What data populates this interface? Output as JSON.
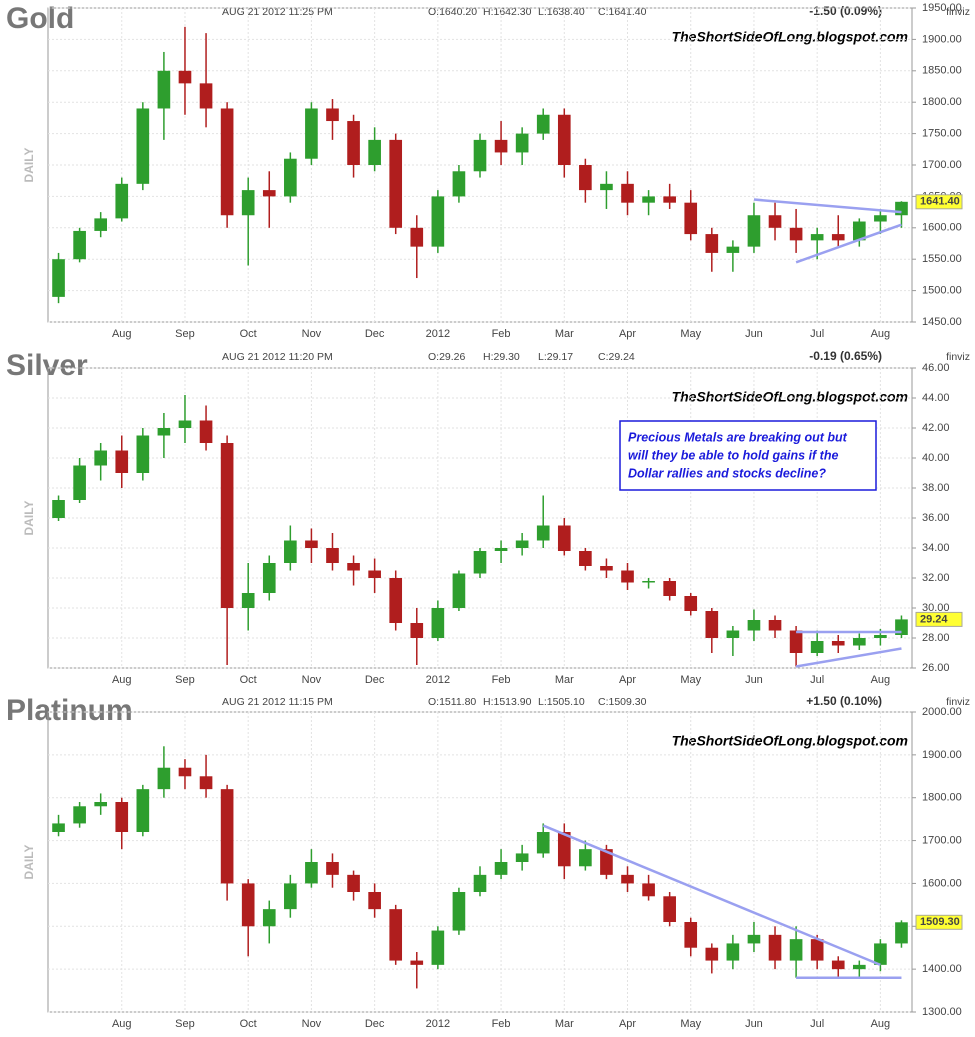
{
  "chart_data": [
    {
      "type": "candlestick",
      "title": "Gold",
      "date": "AUG 21 2012 11:25 PM",
      "open_label": "O:1640.20",
      "high_label": "H:1642.30",
      "low_label": "L:1638.40",
      "close_label": "C:1641.40",
      "change": "-1.50 (0.09%)",
      "change_color": "#cc0000",
      "source": "finviz",
      "watermark": "TheShortSideOfLong.blogspot.com",
      "y_label": "DAILY",
      "categories": [
        null,
        null,
        null,
        "Aug",
        null,
        null,
        "Sep",
        null,
        null,
        "Oct",
        null,
        null,
        "Nov",
        null,
        null,
        "Dec",
        null,
        null,
        "2012",
        null,
        null,
        "Feb",
        null,
        null,
        "Mar",
        null,
        null,
        "Apr",
        null,
        null,
        "May",
        null,
        null,
        "Jun",
        null,
        null,
        "Jul",
        null,
        null,
        "Aug",
        null
      ],
      "open": [
        1490,
        1550,
        1595,
        1615,
        1670,
        1790,
        1850,
        1830,
        1790,
        1620,
        1660,
        1650,
        1710,
        1790,
        1770,
        1700,
        1740,
        1600,
        1570,
        1650,
        1690,
        1740,
        1720,
        1750,
        1780,
        1700,
        1660,
        1670,
        1640,
        1650,
        1640,
        1590,
        1560,
        1570,
        1620,
        1600,
        1580,
        1590,
        1580,
        1610,
        1620
      ],
      "high": [
        1560,
        1600,
        1625,
        1680,
        1800,
        1880,
        1920,
        1910,
        1800,
        1680,
        1690,
        1720,
        1800,
        1805,
        1780,
        1760,
        1750,
        1620,
        1660,
        1700,
        1750,
        1770,
        1760,
        1790,
        1790,
        1710,
        1690,
        1690,
        1660,
        1670,
        1660,
        1600,
        1580,
        1640,
        1640,
        1630,
        1600,
        1620,
        1615,
        1630,
        1642.3
      ],
      "low": [
        1480,
        1545,
        1585,
        1610,
        1660,
        1740,
        1780,
        1760,
        1600,
        1540,
        1600,
        1640,
        1700,
        1740,
        1680,
        1690,
        1590,
        1520,
        1560,
        1640,
        1680,
        1700,
        1700,
        1740,
        1680,
        1640,
        1630,
        1620,
        1620,
        1630,
        1580,
        1530,
        1530,
        1560,
        1580,
        1560,
        1550,
        1570,
        1570,
        1590,
        1600
      ],
      "close": [
        1550,
        1595,
        1615,
        1670,
        1790,
        1850,
        1830,
        1790,
        1620,
        1660,
        1650,
        1710,
        1790,
        1770,
        1700,
        1740,
        1600,
        1570,
        1650,
        1690,
        1740,
        1720,
        1750,
        1780,
        1700,
        1660,
        1670,
        1640,
        1650,
        1640,
        1590,
        1560,
        1570,
        1620,
        1600,
        1580,
        1590,
        1580,
        1610,
        1620,
        1641.4
      ],
      "up_color": "#2e9e2e",
      "down_color": "#b01e1e",
      "ylim": [
        1450,
        1950
      ],
      "yticks": [
        {
          "value": 1450,
          "label": "1450.00"
        },
        {
          "value": 1500,
          "label": "1500.00"
        },
        {
          "value": 1550,
          "label": "1550.00"
        },
        {
          "value": 1600,
          "label": "1600.00"
        },
        {
          "value": 1650,
          "label": "1650.00"
        },
        {
          "value": 1700,
          "label": "1700.00"
        },
        {
          "value": 1750,
          "label": "1750.00"
        },
        {
          "value": 1800,
          "label": "1800.00"
        },
        {
          "value": 1850,
          "label": "1850.00"
        },
        {
          "value": 1900,
          "label": "1900.00"
        },
        {
          "value": 1950,
          "label": "1950.00"
        }
      ],
      "last_price": {
        "value": 1641.4,
        "label": "1641.40"
      },
      "trendlines": [
        {
          "x": [
            33,
            40
          ],
          "y": [
            1645,
            1625
          ]
        },
        {
          "x": [
            35,
            40
          ],
          "y": [
            1545,
            1605
          ]
        }
      ],
      "trendline_color": "#9aa0f0",
      "grid": true
    },
    {
      "type": "candlestick",
      "title": "Silver",
      "date": "AUG 21 2012 11:20 PM",
      "open_label": "O:29.26",
      "high_label": "H:29.30",
      "low_label": "L:29.17",
      "close_label": "C:29.24",
      "change": "-0.19 (0.65%)",
      "change_color": "#cc0000",
      "source": "finviz",
      "watermark": "TheShortSideOfLong.blogspot.com",
      "y_label": "DAILY",
      "annotation": [
        "Precious Metals are breaking out but",
        "will they be able to hold gains if the",
        "Dollar rallies and stocks decline?"
      ],
      "categories": [
        null,
        null,
        null,
        "Aug",
        null,
        null,
        "Sep",
        null,
        null,
        "Oct",
        null,
        null,
        "Nov",
        null,
        null,
        "Dec",
        null,
        null,
        "2012",
        null,
        null,
        "Feb",
        null,
        null,
        "Mar",
        null,
        null,
        "Apr",
        null,
        null,
        "May",
        null,
        null,
        "Jun",
        null,
        null,
        "Jul",
        null,
        null,
        "Aug",
        null
      ],
      "open": [
        36,
        37.2,
        39.5,
        40.5,
        39,
        41.5,
        42,
        42.5,
        41,
        30,
        31,
        33,
        34.5,
        34,
        33,
        32.5,
        32,
        29,
        28,
        30,
        32.3,
        33.8,
        34,
        34.5,
        35.5,
        33.8,
        32.8,
        32.5,
        31.7,
        31.8,
        30.8,
        29.8,
        28,
        28.5,
        29.2,
        28.5,
        27,
        27.8,
        27.5,
        28,
        28.2
      ],
      "high": [
        37.5,
        40,
        41,
        41.5,
        42,
        43,
        44.2,
        43.5,
        41.5,
        33,
        33.5,
        35.5,
        35.3,
        35,
        33.5,
        33.3,
        32.5,
        30,
        30.5,
        32.5,
        34,
        34.5,
        35,
        37.5,
        36,
        34,
        33.3,
        33,
        32,
        32,
        31,
        30,
        28.8,
        29.9,
        29.5,
        28.8,
        28.5,
        28.2,
        28.3,
        28.6,
        29.5
      ],
      "low": [
        35.8,
        37,
        38.5,
        38,
        38.5,
        40,
        41,
        40.5,
        26.2,
        28.5,
        30.5,
        32.5,
        33,
        32.5,
        31.5,
        31,
        28.5,
        26.2,
        27.8,
        29.8,
        32,
        33,
        33.5,
        34,
        33.5,
        32.5,
        32,
        31.2,
        31.3,
        30.5,
        29.5,
        27,
        26.8,
        27.8,
        28,
        26.1,
        26.8,
        27,
        27.2,
        27.5,
        28
      ],
      "close": [
        37.2,
        39.5,
        40.5,
        39,
        41.5,
        42,
        42.5,
        41,
        30,
        31,
        33,
        34.5,
        34,
        33,
        32.5,
        32,
        29,
        28,
        30,
        32.3,
        33.8,
        34,
        34.5,
        35.5,
        33.8,
        32.8,
        32.5,
        31.7,
        31.8,
        30.8,
        29.8,
        28,
        28.5,
        29.2,
        28.5,
        27,
        27.8,
        27.5,
        28,
        28.2,
        29.24
      ],
      "up_color": "#2e9e2e",
      "down_color": "#b01e1e",
      "ylim": [
        26,
        46
      ],
      "yticks": [
        {
          "value": 26,
          "label": "26.00"
        },
        {
          "value": 28,
          "label": "28.00"
        },
        {
          "value": 30,
          "label": "30.00"
        },
        {
          "value": 32,
          "label": "32.00"
        },
        {
          "value": 34,
          "label": "34.00"
        },
        {
          "value": 36,
          "label": "36.00"
        },
        {
          "value": 38,
          "label": "38.00"
        },
        {
          "value": 40,
          "label": "40.00"
        },
        {
          "value": 42,
          "label": "42.00"
        },
        {
          "value": 44,
          "label": "44.00"
        },
        {
          "value": 46,
          "label": "46.00"
        }
      ],
      "last_price": {
        "value": 29.24,
        "label": "29.24"
      },
      "trendlines": [
        {
          "x": [
            35,
            40
          ],
          "y": [
            28.4,
            28.4
          ]
        },
        {
          "x": [
            35,
            40
          ],
          "y": [
            26.1,
            27.3
          ]
        }
      ],
      "trendline_color": "#9aa0f0",
      "grid": true
    },
    {
      "type": "candlestick",
      "title": "Platinum",
      "date": "AUG 21 2012 11:15 PM",
      "open_label": "O:1511.80",
      "high_label": "H:1513.90",
      "low_label": "L:1505.10",
      "close_label": "C:1509.30",
      "change": "+1.50 (0.10%)",
      "change_color": "#2e9e2e",
      "source": "finviz",
      "watermark": "TheShortSideOfLong.blogspot.com",
      "y_label": "DAILY",
      "categories": [
        null,
        null,
        null,
        "Aug",
        null,
        null,
        "Sep",
        null,
        null,
        "Oct",
        null,
        null,
        "Nov",
        null,
        null,
        "Dec",
        null,
        null,
        "2012",
        null,
        null,
        "Feb",
        null,
        null,
        "Mar",
        null,
        null,
        "Apr",
        null,
        null,
        "May",
        null,
        null,
        "Jun",
        null,
        null,
        "Jul",
        null,
        null,
        "Aug",
        null
      ],
      "open": [
        1720,
        1740,
        1780,
        1790,
        1720,
        1820,
        1870,
        1850,
        1820,
        1600,
        1500,
        1540,
        1600,
        1650,
        1620,
        1580,
        1540,
        1420,
        1410,
        1490,
        1580,
        1620,
        1650,
        1670,
        1720,
        1640,
        1680,
        1620,
        1600,
        1570,
        1510,
        1450,
        1420,
        1460,
        1480,
        1420,
        1470,
        1420,
        1400,
        1410,
        1460
      ],
      "high": [
        1760,
        1790,
        1810,
        1800,
        1830,
        1920,
        1890,
        1900,
        1830,
        1610,
        1560,
        1620,
        1680,
        1670,
        1630,
        1600,
        1550,
        1440,
        1500,
        1590,
        1640,
        1680,
        1690,
        1740,
        1740,
        1700,
        1690,
        1640,
        1620,
        1580,
        1520,
        1460,
        1480,
        1510,
        1500,
        1500,
        1480,
        1430,
        1420,
        1470,
        1513.9
      ],
      "low": [
        1710,
        1730,
        1760,
        1680,
        1710,
        1800,
        1820,
        1800,
        1560,
        1430,
        1460,
        1520,
        1590,
        1590,
        1560,
        1520,
        1410,
        1355,
        1400,
        1480,
        1570,
        1610,
        1630,
        1660,
        1610,
        1630,
        1610,
        1580,
        1560,
        1500,
        1430,
        1390,
        1400,
        1440,
        1400,
        1380,
        1400,
        1380,
        1380,
        1395,
        1450
      ],
      "close": [
        1740,
        1780,
        1790,
        1720,
        1820,
        1870,
        1850,
        1820,
        1600,
        1500,
        1540,
        1600,
        1650,
        1620,
        1580,
        1540,
        1420,
        1410,
        1490,
        1580,
        1620,
        1650,
        1670,
        1720,
        1640,
        1680,
        1620,
        1600,
        1570,
        1510,
        1450,
        1420,
        1460,
        1480,
        1420,
        1470,
        1420,
        1400,
        1410,
        1460,
        1509.3
      ],
      "up_color": "#2e9e2e",
      "down_color": "#b01e1e",
      "ylim": [
        1300,
        2000
      ],
      "yticks": [
        {
          "value": 1300,
          "label": "1300.00"
        },
        {
          "value": 1400,
          "label": "1400.00"
        },
        {
          "value": 1500,
          "label": "1500.00"
        },
        {
          "value": 1600,
          "label": "1600.00"
        },
        {
          "value": 1700,
          "label": "1700.00"
        },
        {
          "value": 1800,
          "label": "1800.00"
        },
        {
          "value": 1900,
          "label": "1900.00"
        },
        {
          "value": 2000,
          "label": "2000.00"
        }
      ],
      "last_price": {
        "value": 1509.3,
        "label": "1509.30"
      },
      "trendlines": [
        {
          "x": [
            23,
            39
          ],
          "y": [
            1735,
            1410
          ]
        },
        {
          "x": [
            35,
            40
          ],
          "y": [
            1380,
            1380
          ]
        }
      ],
      "trendline_color": "#9aa0f0",
      "grid": true
    }
  ]
}
